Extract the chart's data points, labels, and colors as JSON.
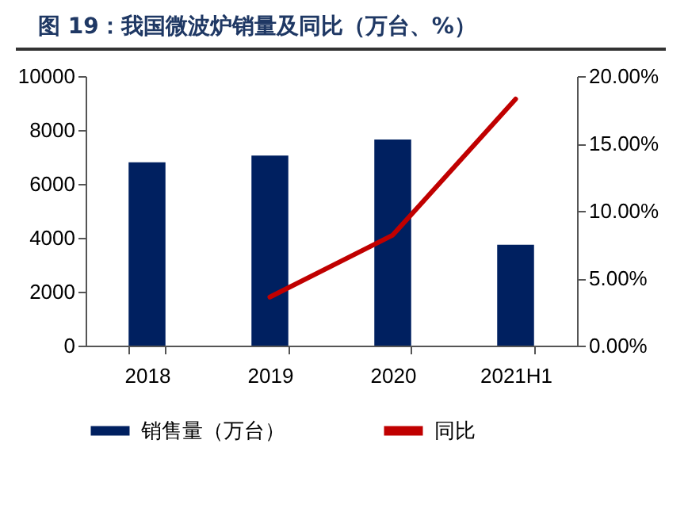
{
  "chart_data": {
    "type": "bar",
    "title": "图 19：我国微波炉销量及同比（万台、%）",
    "categories": [
      "2018",
      "2019",
      "2020",
      "2021H1"
    ],
    "series": [
      {
        "name": "销售量（万台）",
        "color": "#002060",
        "values": [
          6800,
          7050,
          7650,
          3740
        ]
      },
      {
        "name": "同比",
        "type": "line",
        "axis": "y2",
        "color": "#c00000",
        "values": [
          null,
          3.6,
          8.2,
          18.3
        ]
      }
    ],
    "ylim": [
      0,
      10000
    ],
    "yticks": [
      0,
      2000,
      4000,
      6000,
      8000,
      10000
    ],
    "y2lim": [
      0,
      20
    ],
    "y2ticks": [
      {
        "value": 0,
        "label": "0.00%"
      },
      {
        "value": 5,
        "label": "5.00%"
      },
      {
        "value": 10,
        "label": "10.00%"
      },
      {
        "value": 15,
        "label": "15.00%"
      },
      {
        "value": 20,
        "label": "20.00%"
      }
    ],
    "legend": "bottom",
    "grid": false
  }
}
